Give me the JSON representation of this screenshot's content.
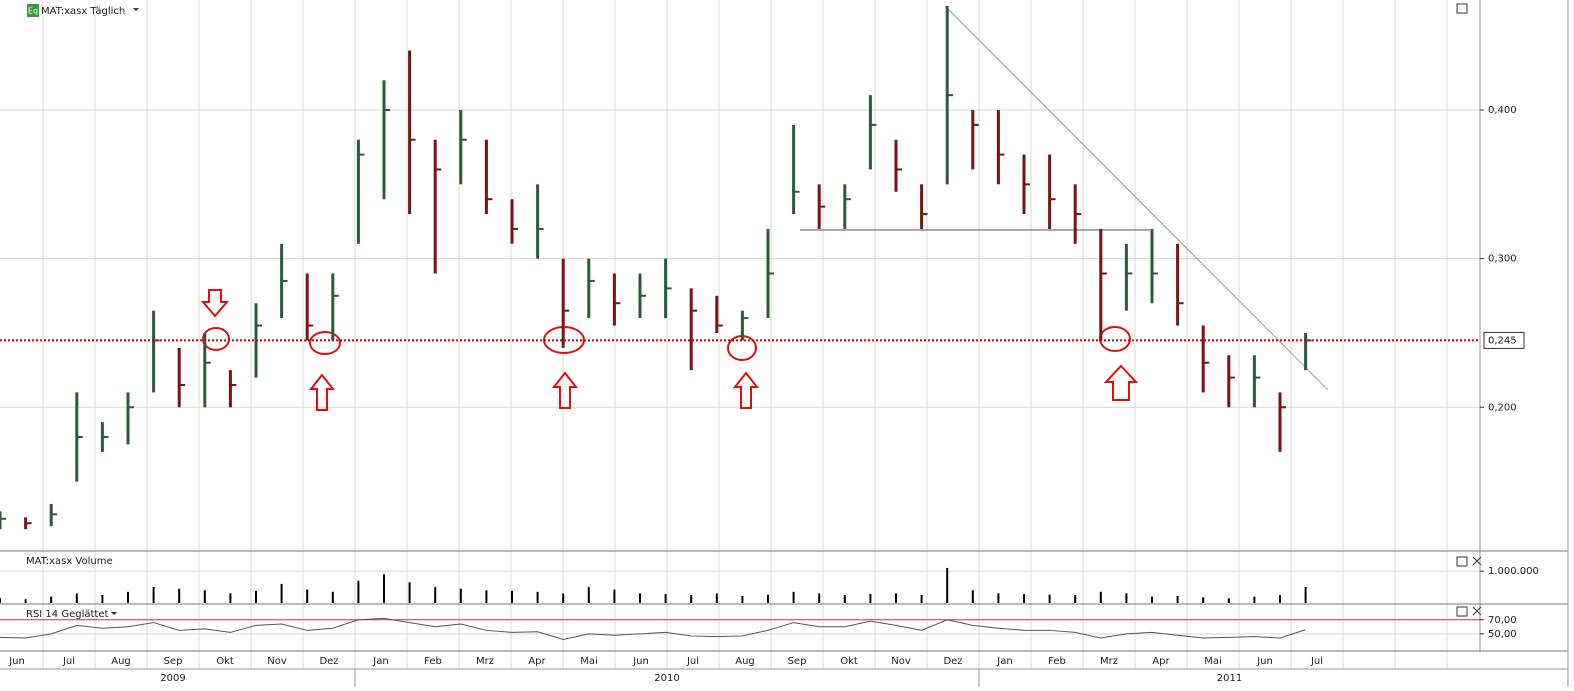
{
  "header": {
    "badge": "Eq",
    "title": "MAT:xasx Täglich"
  },
  "time_axis": [
    {
      "year": "2009",
      "months": [
        "Jun",
        "Jul",
        "Aug",
        "Sep",
        "Okt",
        "Nov",
        "Dez"
      ]
    },
    {
      "year": "2010",
      "months": [
        "Jan",
        "Feb",
        "Mrz",
        "Apr",
        "Mai",
        "Jun",
        "Jul",
        "Aug",
        "Sep",
        "Okt",
        "Nov",
        "Dez"
      ]
    },
    {
      "year": "2011",
      "months": [
        "Jan",
        "Feb",
        "Mrz",
        "Apr",
        "Mai",
        "Jun",
        "Jul"
      ]
    }
  ],
  "chart_data": [
    {
      "type": "hlc",
      "up_color": "#2f5a3a",
      "down_color": "#7a1414",
      "ylim": [
        0.104,
        0.474
      ],
      "yticks": [
        {
          "value": 0.2,
          "label": "0,200"
        },
        {
          "value": 0.3,
          "label": "0,300"
        },
        {
          "value": 0.4,
          "label": "0,400"
        }
      ],
      "reference_line": {
        "value": 0.245,
        "label": "0,245",
        "color": "#cc0000"
      },
      "high": [
        0.13,
        0.126,
        0.135,
        0.21,
        0.19,
        0.21,
        0.265,
        0.24,
        0.25,
        0.225,
        0.27,
        0.31,
        0.29,
        0.29,
        0.38,
        0.42,
        0.44,
        0.38,
        0.4,
        0.38,
        0.34,
        0.35,
        0.3,
        0.3,
        0.29,
        0.29,
        0.3,
        0.28,
        0.275,
        0.265,
        0.32,
        0.39,
        0.35,
        0.35,
        0.41,
        0.38,
        0.35,
        0.47,
        0.4,
        0.4,
        0.37,
        0.37,
        0.35,
        0.32,
        0.31,
        0.32,
        0.31,
        0.255,
        0.235,
        0.235,
        0.21,
        0.25
      ],
      "low": [
        0.118,
        0.118,
        0.12,
        0.15,
        0.17,
        0.175,
        0.21,
        0.2,
        0.2,
        0.2,
        0.22,
        0.26,
        0.245,
        0.245,
        0.31,
        0.34,
        0.33,
        0.29,
        0.35,
        0.33,
        0.31,
        0.3,
        0.24,
        0.26,
        0.255,
        0.26,
        0.26,
        0.225,
        0.25,
        0.245,
        0.26,
        0.33,
        0.32,
        0.32,
        0.36,
        0.345,
        0.32,
        0.35,
        0.36,
        0.35,
        0.33,
        0.32,
        0.31,
        0.245,
        0.265,
        0.27,
        0.255,
        0.21,
        0.2,
        0.2,
        0.17,
        0.225
      ],
      "close": [
        0.125,
        0.122,
        0.128,
        0.18,
        0.18,
        0.2,
        0.245,
        0.215,
        0.23,
        0.215,
        0.255,
        0.285,
        0.255,
        0.275,
        0.37,
        0.4,
        0.38,
        0.36,
        0.38,
        0.34,
        0.32,
        0.32,
        0.265,
        0.285,
        0.27,
        0.275,
        0.28,
        0.265,
        0.255,
        0.26,
        0.29,
        0.345,
        0.335,
        0.34,
        0.39,
        0.36,
        0.33,
        0.41,
        0.39,
        0.37,
        0.35,
        0.34,
        0.33,
        0.29,
        0.29,
        0.29,
        0.27,
        0.23,
        0.22,
        0.22,
        0.2,
        0.245
      ]
    },
    {
      "type": "bar",
      "title": "MAT:xasx Volume",
      "color": "#000000",
      "ylim": [
        0,
        1600000
      ],
      "yticks": [
        {
          "value": 1000000,
          "label": "1.000.000"
        }
      ],
      "values": [
        150000,
        120000,
        200000,
        300000,
        250000,
        350000,
        500000,
        450000,
        400000,
        300000,
        380000,
        600000,
        420000,
        350000,
        700000,
        900000,
        650000,
        500000,
        450000,
        400000,
        380000,
        350000,
        300000,
        500000,
        420000,
        300000,
        280000,
        250000,
        300000,
        220000,
        260000,
        350000,
        300000,
        250000,
        280000,
        300000,
        250000,
        1100000,
        400000,
        300000,
        280000,
        260000,
        250000,
        350000,
        300000,
        200000,
        220000,
        180000,
        150000,
        200000,
        250000,
        500000
      ]
    },
    {
      "type": "line",
      "title": "RSI 14 Geglättet",
      "color": "#555555",
      "ylim": [
        27,
        91
      ],
      "yticks": [
        {
          "value": 50,
          "label": "50,00"
        },
        {
          "value": 70,
          "label": "70,00"
        }
      ],
      "threshold_color": "#cc3333",
      "values": [
        45,
        44,
        50,
        62,
        58,
        60,
        66,
        55,
        57,
        52,
        62,
        64,
        55,
        58,
        70,
        72,
        66,
        60,
        64,
        55,
        52,
        53,
        42,
        50,
        48,
        50,
        52,
        47,
        46,
        47,
        55,
        66,
        60,
        60,
        68,
        62,
        55,
        70,
        62,
        58,
        55,
        55,
        52,
        44,
        50,
        52,
        48,
        44,
        45,
        46,
        44,
        56
      ]
    }
  ]
}
